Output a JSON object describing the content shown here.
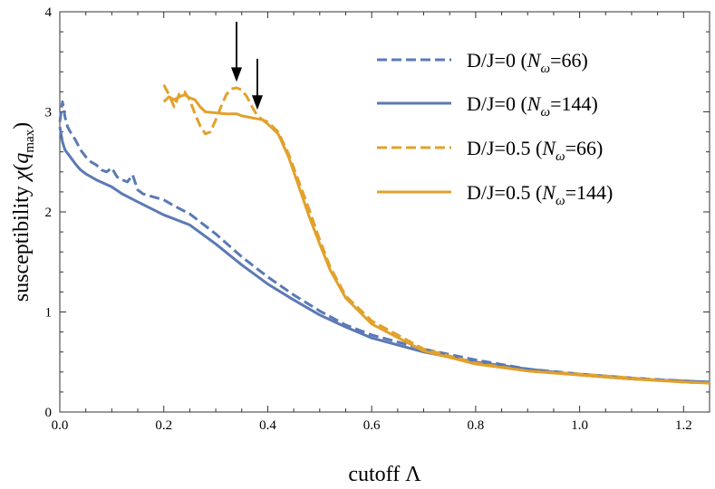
{
  "chart_data": {
    "type": "line",
    "xlabel": "cutoff Λ",
    "ylabel_parts": [
      "susceptibility ",
      "χ",
      "(",
      "q",
      "max",
      ")"
    ],
    "xlim": [
      0.0,
      1.25
    ],
    "ylim": [
      0,
      4
    ],
    "xticks": [
      0.0,
      0.2,
      0.4,
      0.6,
      0.8,
      1.0,
      1.2
    ],
    "xtick_labels": [
      "0.0",
      "0.2",
      "0.4",
      "0.6",
      "0.8",
      "1.0",
      "1.2"
    ],
    "yticks": [
      0,
      1,
      2,
      3,
      4
    ],
    "ytick_labels": [
      "0",
      "1",
      "2",
      "3",
      "4"
    ],
    "grid": false,
    "legend_position": "top-right",
    "arrows": [
      {
        "x": 0.34,
        "y_from": 3.9,
        "y_to": 3.3
      },
      {
        "x": 0.38,
        "y_from": 3.53,
        "y_to": 3.02
      }
    ],
    "series": [
      {
        "name_parts": [
          "D/J=0 (",
          "N",
          "ω",
          "=66)"
        ],
        "color": "#5b79b5",
        "dash": "dashed",
        "x": [
          0.0,
          0.005,
          0.01,
          0.015,
          0.02,
          0.03,
          0.04,
          0.05,
          0.06,
          0.07,
          0.08,
          0.09,
          0.1,
          0.11,
          0.12,
          0.13,
          0.14,
          0.15,
          0.16,
          0.18,
          0.2,
          0.22,
          0.25,
          0.3,
          0.35,
          0.4,
          0.45,
          0.5,
          0.55,
          0.6,
          0.7,
          0.8,
          0.9,
          1.0,
          1.1,
          1.2,
          1.25
        ],
        "y": [
          2.9,
          3.1,
          2.95,
          2.85,
          2.8,
          2.72,
          2.62,
          2.55,
          2.5,
          2.47,
          2.42,
          2.4,
          2.44,
          2.35,
          2.32,
          2.3,
          2.37,
          2.22,
          2.18,
          2.15,
          2.12,
          2.06,
          1.98,
          1.78,
          1.55,
          1.35,
          1.17,
          1.01,
          0.87,
          0.77,
          0.63,
          0.52,
          0.43,
          0.38,
          0.34,
          0.31,
          0.3
        ]
      },
      {
        "name_parts": [
          "D/J=0 (",
          "N",
          "ω",
          "=144)"
        ],
        "color": "#5b79b5",
        "dash": "solid",
        "x": [
          0.0,
          0.005,
          0.01,
          0.02,
          0.03,
          0.04,
          0.05,
          0.07,
          0.1,
          0.12,
          0.15,
          0.2,
          0.25,
          0.3,
          0.35,
          0.4,
          0.45,
          0.5,
          0.55,
          0.6,
          0.7,
          0.8,
          0.9,
          1.0,
          1.1,
          1.2,
          1.25
        ],
        "y": [
          2.85,
          2.7,
          2.62,
          2.55,
          2.48,
          2.42,
          2.38,
          2.32,
          2.25,
          2.18,
          2.1,
          1.97,
          1.87,
          1.68,
          1.47,
          1.28,
          1.12,
          0.97,
          0.85,
          0.74,
          0.6,
          0.5,
          0.43,
          0.37,
          0.33,
          0.31,
          0.3
        ]
      },
      {
        "name_parts": [
          "D/J=0.5 (",
          "N",
          "ω",
          "=66)"
        ],
        "color": "#e2a12b",
        "dash": "dashed",
        "x": [
          0.2,
          0.21,
          0.22,
          0.23,
          0.24,
          0.25,
          0.26,
          0.27,
          0.28,
          0.29,
          0.3,
          0.31,
          0.32,
          0.33,
          0.34,
          0.35,
          0.36,
          0.37,
          0.38,
          0.39,
          0.4,
          0.42,
          0.44,
          0.46,
          0.48,
          0.5,
          0.52,
          0.55,
          0.6,
          0.7,
          0.8,
          0.9,
          1.0,
          1.1,
          1.2,
          1.25
        ],
        "y": [
          3.27,
          3.17,
          3.05,
          3.18,
          3.2,
          3.12,
          2.98,
          2.86,
          2.78,
          2.8,
          2.92,
          3.05,
          3.17,
          3.23,
          3.24,
          3.22,
          3.15,
          3.05,
          2.96,
          2.92,
          2.9,
          2.8,
          2.58,
          2.3,
          2.02,
          1.72,
          1.45,
          1.16,
          0.91,
          0.63,
          0.49,
          0.41,
          0.38,
          0.34,
          0.3,
          0.29
        ]
      },
      {
        "name_parts": [
          "D/J=0.5 (",
          "N",
          "ω",
          "=144)"
        ],
        "color": "#e2a12b",
        "dash": "solid",
        "x": [
          0.2,
          0.21,
          0.22,
          0.23,
          0.24,
          0.25,
          0.26,
          0.27,
          0.28,
          0.3,
          0.32,
          0.34,
          0.35,
          0.36,
          0.37,
          0.38,
          0.39,
          0.4,
          0.42,
          0.44,
          0.46,
          0.48,
          0.5,
          0.52,
          0.55,
          0.6,
          0.7,
          0.8,
          0.9,
          1.0,
          1.1,
          1.2,
          1.25
        ],
        "y": [
          3.1,
          3.15,
          3.12,
          3.15,
          3.17,
          3.14,
          3.12,
          3.05,
          3.0,
          2.99,
          2.98,
          2.98,
          2.96,
          2.95,
          2.94,
          2.93,
          2.92,
          2.88,
          2.78,
          2.55,
          2.25,
          1.95,
          1.68,
          1.42,
          1.14,
          0.88,
          0.61,
          0.48,
          0.41,
          0.37,
          0.33,
          0.3,
          0.29
        ]
      }
    ]
  }
}
